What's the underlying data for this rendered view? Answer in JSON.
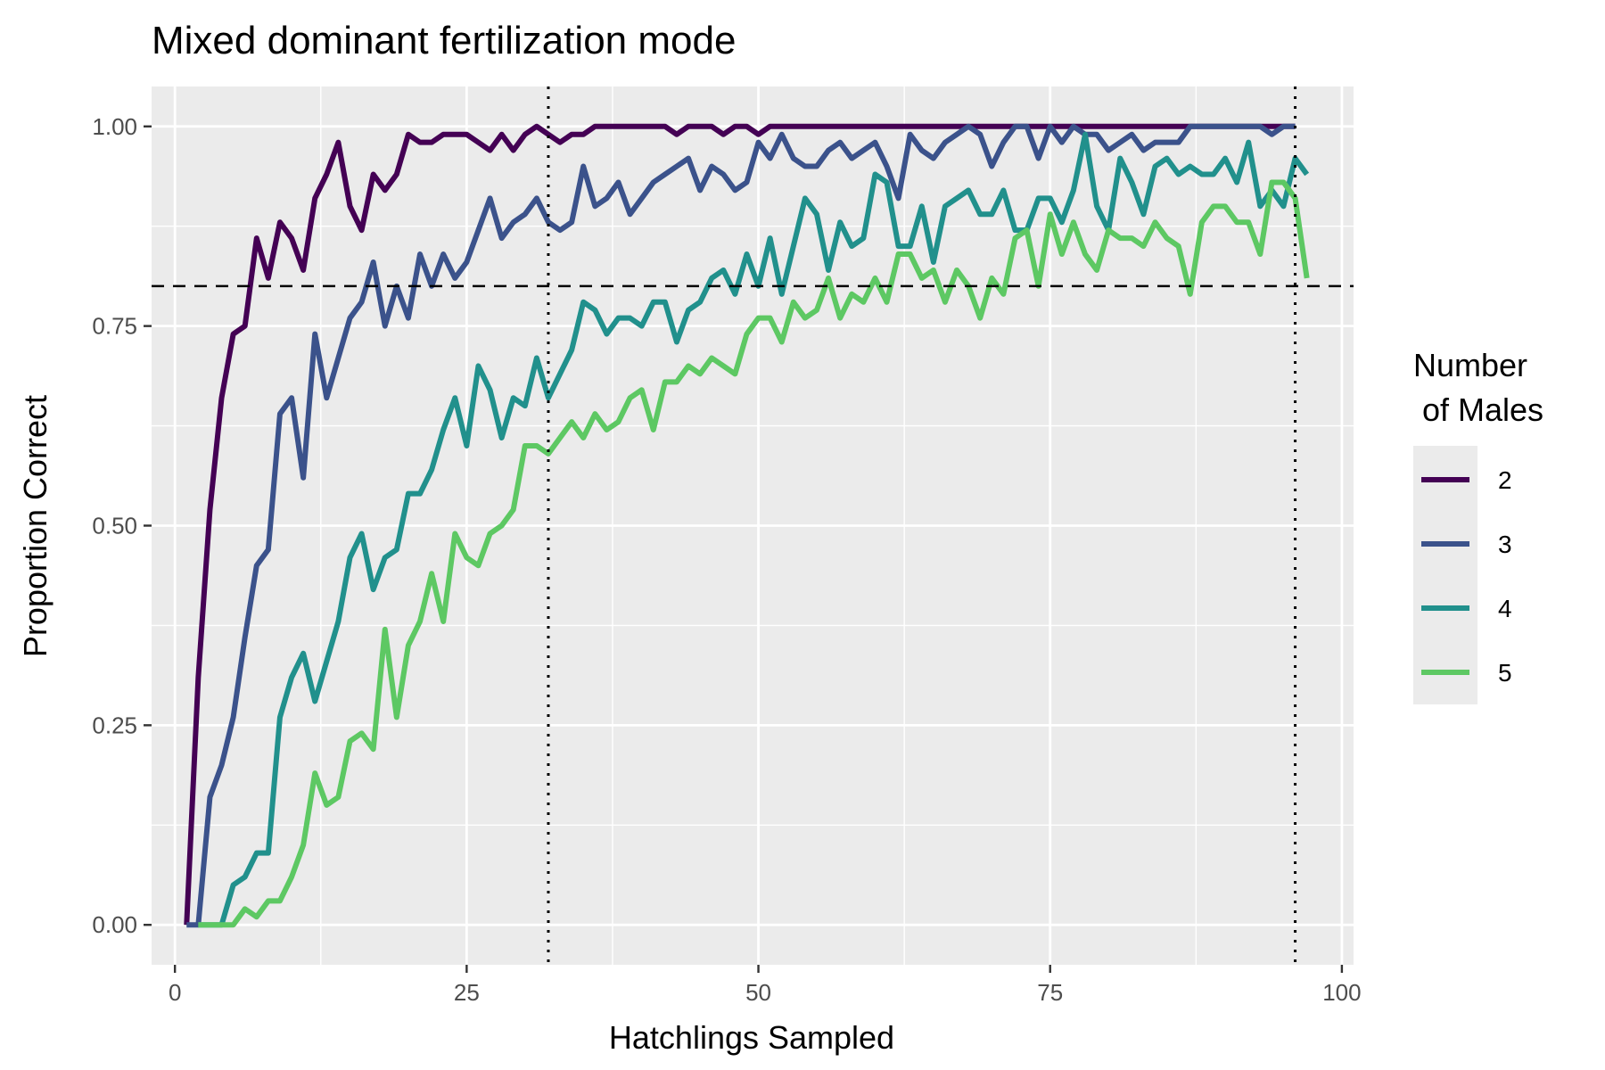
{
  "chart_data": {
    "type": "line",
    "title": "Mixed dominant fertilization mode",
    "xlabel": "Hatchlings Sampled",
    "ylabel": "Proportion Correct",
    "xlim": [
      -2,
      101
    ],
    "ylim": [
      -0.05,
      1.05
    ],
    "x_ticks": [
      0,
      25,
      50,
      75,
      100
    ],
    "x_tick_labels": [
      "0",
      "25",
      "50",
      "75",
      "100"
    ],
    "y_ticks": [
      0,
      0.25,
      0.5,
      0.75,
      1.0
    ],
    "y_tick_labels": [
      "0.00",
      "0.25",
      "0.50",
      "0.75",
      "1.00"
    ],
    "grid": true,
    "reference_lines": {
      "horizontal_dashed_y": 0.8,
      "vertical_dotted_x": [
        32,
        96
      ]
    },
    "legend": {
      "title_lines": [
        "Number",
        " of Males"
      ],
      "placement": "right"
    },
    "series": [
      {
        "name": "2",
        "color": "#440154",
        "x_start": 1,
        "values": [
          0.0,
          0.31,
          0.52,
          0.66,
          0.74,
          0.75,
          0.86,
          0.81,
          0.88,
          0.86,
          0.82,
          0.91,
          0.94,
          0.98,
          0.9,
          0.87,
          0.94,
          0.92,
          0.94,
          0.99,
          0.98,
          0.98,
          0.99,
          0.99,
          0.99,
          0.98,
          0.97,
          0.99,
          0.97,
          0.99,
          1.0,
          0.99,
          0.98,
          0.99,
          0.99,
          1.0,
          1.0,
          1.0,
          1.0,
          1.0,
          1.0,
          1.0,
          0.99,
          1.0,
          1.0,
          1.0,
          0.99,
          1.0,
          1.0,
          0.99,
          1.0,
          1.0,
          1.0,
          1.0,
          1.0,
          1.0,
          1.0,
          1.0,
          1.0,
          1.0,
          1.0,
          1.0,
          1.0,
          1.0,
          1.0,
          1.0,
          1.0,
          1.0,
          1.0,
          1.0,
          1.0,
          1.0,
          1.0,
          1.0,
          1.0,
          1.0,
          1.0,
          1.0,
          1.0,
          1.0,
          1.0,
          1.0,
          1.0,
          1.0,
          1.0,
          1.0,
          1.0,
          1.0,
          1.0,
          1.0,
          1.0,
          1.0,
          1.0,
          1.0,
          1.0,
          1.0
        ]
      },
      {
        "name": "3",
        "color": "#3B528B",
        "x_start": 1,
        "values": [
          0.0,
          0.0,
          0.16,
          0.2,
          0.26,
          0.36,
          0.45,
          0.47,
          0.64,
          0.66,
          0.56,
          0.74,
          0.66,
          0.71,
          0.76,
          0.78,
          0.83,
          0.75,
          0.8,
          0.76,
          0.84,
          0.8,
          0.84,
          0.81,
          0.83,
          0.87,
          0.91,
          0.86,
          0.88,
          0.89,
          0.91,
          0.88,
          0.87,
          0.88,
          0.95,
          0.9,
          0.91,
          0.93,
          0.89,
          0.91,
          0.93,
          0.94,
          0.95,
          0.96,
          0.92,
          0.95,
          0.94,
          0.92,
          0.93,
          0.98,
          0.96,
          0.99,
          0.96,
          0.95,
          0.95,
          0.97,
          0.98,
          0.96,
          0.97,
          0.98,
          0.95,
          0.91,
          0.99,
          0.97,
          0.96,
          0.98,
          0.99,
          1.0,
          0.99,
          0.95,
          0.98,
          1.0,
          1.0,
          0.96,
          1.0,
          0.98,
          1.0,
          0.99,
          0.99,
          0.97,
          0.98,
          0.99,
          0.97,
          0.98,
          0.98,
          0.98,
          1.0,
          1.0,
          1.0,
          1.0,
          1.0,
          1.0,
          1.0,
          0.99,
          1.0,
          1.0
        ]
      },
      {
        "name": "4",
        "color": "#21908C",
        "x_start": 2,
        "values": [
          0.0,
          0.0,
          0.0,
          0.05,
          0.06,
          0.09,
          0.09,
          0.26,
          0.31,
          0.34,
          0.28,
          0.33,
          0.38,
          0.46,
          0.49,
          0.42,
          0.46,
          0.47,
          0.54,
          0.54,
          0.57,
          0.62,
          0.66,
          0.6,
          0.7,
          0.67,
          0.61,
          0.66,
          0.65,
          0.71,
          0.66,
          0.69,
          0.72,
          0.78,
          0.77,
          0.74,
          0.76,
          0.76,
          0.75,
          0.78,
          0.78,
          0.73,
          0.77,
          0.78,
          0.81,
          0.82,
          0.79,
          0.84,
          0.8,
          0.86,
          0.79,
          0.85,
          0.91,
          0.89,
          0.82,
          0.88,
          0.85,
          0.86,
          0.94,
          0.93,
          0.85,
          0.85,
          0.9,
          0.83,
          0.9,
          0.91,
          0.92,
          0.89,
          0.89,
          0.92,
          0.87,
          0.87,
          0.91,
          0.91,
          0.88,
          0.92,
          0.99,
          0.9,
          0.87,
          0.96,
          0.93,
          0.89,
          0.95,
          0.96,
          0.94,
          0.95,
          0.94,
          0.94,
          0.96,
          0.93,
          0.98,
          0.9,
          0.92,
          0.9,
          0.96,
          0.94
        ]
      },
      {
        "name": "5",
        "color": "#5DC863",
        "x_start": 2,
        "values": [
          0.0,
          0.0,
          0.0,
          0.0,
          0.02,
          0.01,
          0.03,
          0.03,
          0.06,
          0.1,
          0.19,
          0.15,
          0.16,
          0.23,
          0.24,
          0.22,
          0.37,
          0.26,
          0.35,
          0.38,
          0.44,
          0.38,
          0.49,
          0.46,
          0.45,
          0.49,
          0.5,
          0.52,
          0.6,
          0.6,
          0.59,
          0.61,
          0.63,
          0.61,
          0.64,
          0.62,
          0.63,
          0.66,
          0.67,
          0.62,
          0.68,
          0.68,
          0.7,
          0.69,
          0.71,
          0.7,
          0.69,
          0.74,
          0.76,
          0.76,
          0.73,
          0.78,
          0.76,
          0.77,
          0.81,
          0.76,
          0.79,
          0.78,
          0.81,
          0.78,
          0.84,
          0.84,
          0.81,
          0.82,
          0.78,
          0.82,
          0.8,
          0.76,
          0.81,
          0.79,
          0.86,
          0.87,
          0.8,
          0.89,
          0.84,
          0.88,
          0.84,
          0.82,
          0.87,
          0.86,
          0.86,
          0.85,
          0.88,
          0.86,
          0.85,
          0.79,
          0.88,
          0.9,
          0.9,
          0.88,
          0.88,
          0.84,
          0.93,
          0.93,
          0.91,
          0.81
        ]
      }
    ]
  }
}
